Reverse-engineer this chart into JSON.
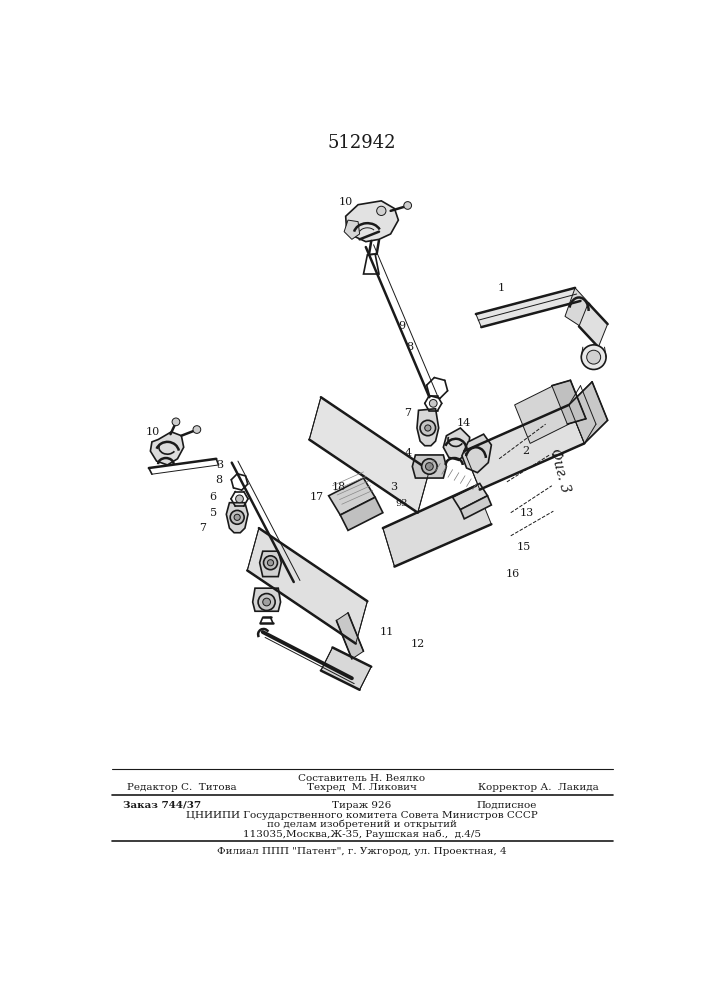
{
  "patent_number": "512942",
  "fig_label": "Фиг. 3",
  "background_color": "#ffffff",
  "line_color": "#1a1a1a",
  "footer": {
    "line1_center": "Составитель Н. Веялко",
    "line1_left": "Редактор С.  Титова",
    "line2_center": "Техред  М. Ликович",
    "line2_right": "Корректор А.  Лакида",
    "line3_left": "Заказ 744/37",
    "line3_center": "Тираж 926",
    "line3_right": "Подписное",
    "line4": "ЦНИИПИ Государственного комитета Совета Министров СССР",
    "line5": "по делам изобретений и открытий",
    "line6": "113035,Москва,Ж-35, Раушская наб.,  д.4/5",
    "line7": "Филиал ППП \"Патент\", г. Ужгород, ул. Проектная, 4"
  }
}
